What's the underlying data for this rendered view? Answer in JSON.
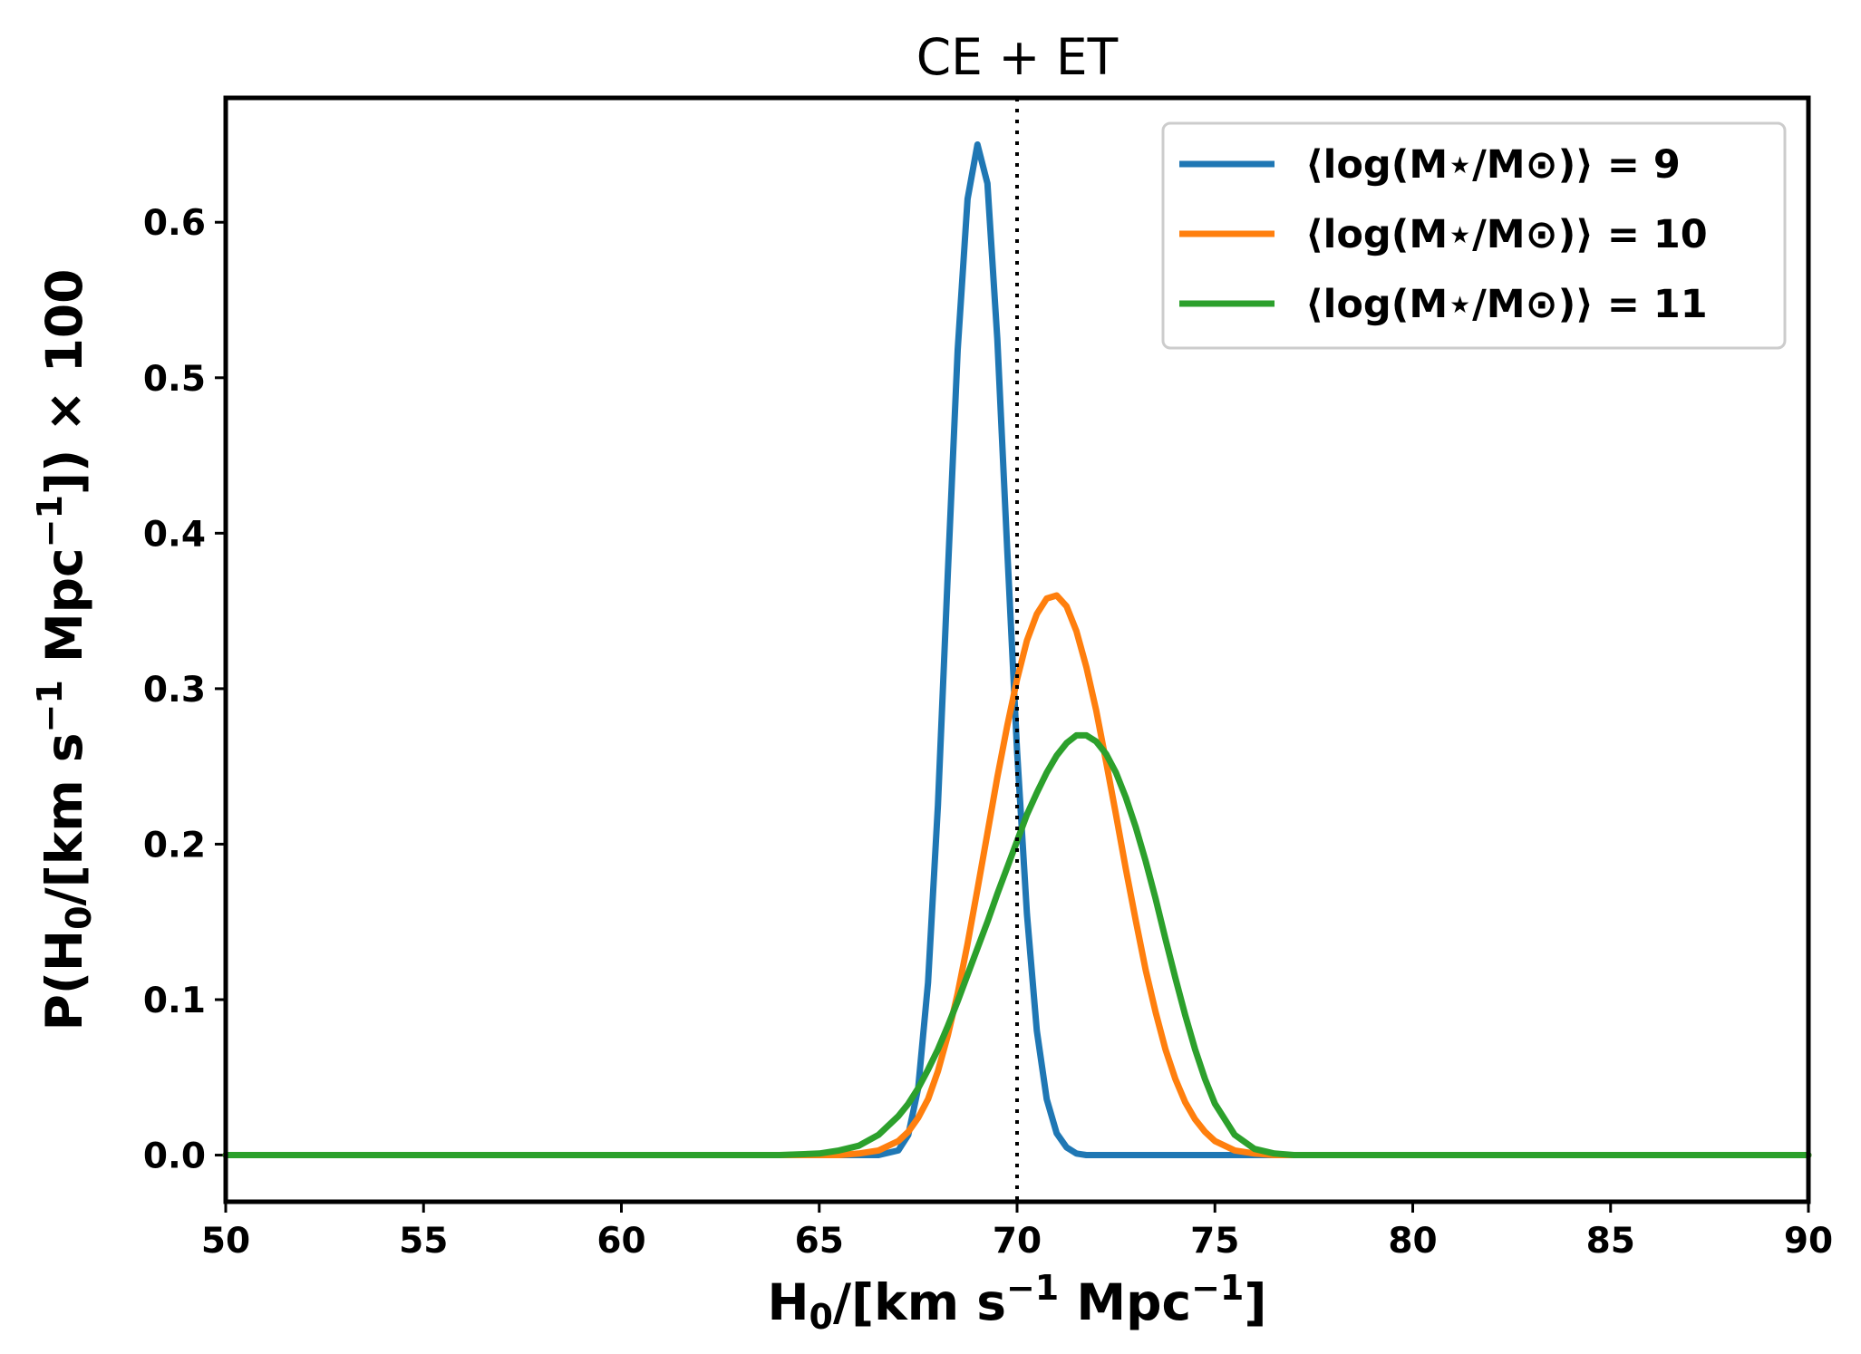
{
  "chart_data": {
    "type": "line",
    "title": "CE + ET",
    "xlabel": "H0/[km s−1 Mpc−1]",
    "ylabel": "P(H0/[km s−1 Mpc−1]) × 100",
    "xlim": [
      50,
      90
    ],
    "ylim": [
      -0.03,
      0.68
    ],
    "xticks": [
      50,
      55,
      60,
      65,
      70,
      75,
      80,
      85,
      90
    ],
    "xtick_labels": [
      "50",
      "55",
      "60",
      "65",
      "70",
      "75",
      "80",
      "85",
      "90"
    ],
    "yticks": [
      0.0,
      0.1,
      0.2,
      0.3,
      0.4,
      0.5,
      0.6
    ],
    "ytick_labels": [
      "0.0",
      "0.1",
      "0.2",
      "0.3",
      "0.4",
      "0.5",
      "0.6"
    ],
    "reference_line": {
      "x": 70,
      "style": "dotted",
      "color": "#000000"
    },
    "legend_position": "top-right",
    "grid": false,
    "x": [
      50,
      60,
      64,
      65,
      65.5,
      66,
      66.5,
      67,
      67.25,
      67.5,
      67.75,
      68,
      68.25,
      68.5,
      68.75,
      69,
      69.25,
      69.5,
      69.75,
      70,
      70.25,
      70.5,
      70.75,
      71,
      71.25,
      71.5,
      71.75,
      72,
      72.25,
      72.5,
      72.75,
      73,
      73.25,
      73.5,
      73.75,
      74,
      74.25,
      74.5,
      74.75,
      75,
      75.5,
      76,
      76.5,
      77,
      80,
      90
    ],
    "series": [
      {
        "name": "⟨log(M⋆/M⊙)⟩ = 9",
        "color": "#1f77b4",
        "values": [
          0,
          0,
          0,
          0,
          0,
          0,
          0,
          0.003,
          0.013,
          0.043,
          0.111,
          0.225,
          0.374,
          0.518,
          0.615,
          0.65,
          0.625,
          0.525,
          0.39,
          0.26,
          0.155,
          0.08,
          0.036,
          0.014,
          0.005,
          0.001,
          0,
          0,
          0,
          0,
          0,
          0,
          0,
          0,
          0,
          0,
          0,
          0,
          0,
          0,
          0,
          0,
          0,
          0,
          0,
          0
        ]
      },
      {
        "name": "⟨log(M⋆/M⊙)⟩ = 10",
        "color": "#ff7f0e",
        "values": [
          0,
          0,
          0,
          0,
          0,
          0.001,
          0.003,
          0.009,
          0.015,
          0.024,
          0.036,
          0.054,
          0.077,
          0.104,
          0.136,
          0.171,
          0.207,
          0.243,
          0.276,
          0.306,
          0.331,
          0.348,
          0.358,
          0.36,
          0.353,
          0.337,
          0.314,
          0.286,
          0.253,
          0.219,
          0.184,
          0.151,
          0.119,
          0.092,
          0.068,
          0.049,
          0.034,
          0.023,
          0.015,
          0.009,
          0.003,
          0.001,
          0,
          0,
          0,
          0
        ]
      },
      {
        "name": "⟨log(M⋆/M⊙)⟩ = 11",
        "color": "#2ca02c",
        "values": [
          0,
          0,
          0,
          0.001,
          0.003,
          0.006,
          0.013,
          0.025,
          0.033,
          0.043,
          0.055,
          0.068,
          0.083,
          0.099,
          0.116,
          0.133,
          0.15,
          0.168,
          0.185,
          0.202,
          0.219,
          0.233,
          0.246,
          0.257,
          0.265,
          0.27,
          0.27,
          0.266,
          0.258,
          0.246,
          0.23,
          0.211,
          0.189,
          0.165,
          0.139,
          0.114,
          0.09,
          0.068,
          0.049,
          0.033,
          0.013,
          0.004,
          0.001,
          0,
          0,
          0
        ]
      }
    ]
  }
}
